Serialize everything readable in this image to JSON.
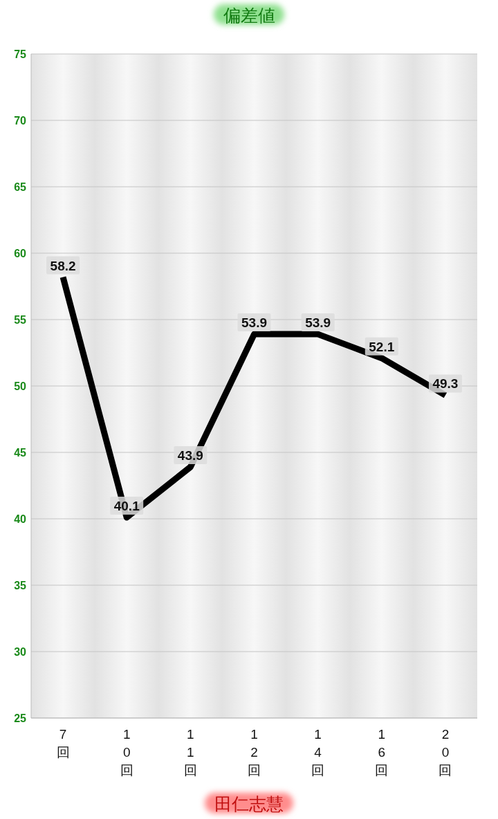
{
  "chart_data": {
    "type": "line",
    "title": "偏差値",
    "xlabel": "田仁志慧",
    "categories": [
      "7回",
      "10回",
      "11回",
      "12回",
      "14回",
      "16回",
      "20回"
    ],
    "series": [
      {
        "color": "#000000",
        "values": [
          58.2,
          40.1,
          43.9,
          53.9,
          53.9,
          52.1,
          49.3
        ]
      }
    ],
    "ylim": [
      25,
      75
    ],
    "yticks": [
      25,
      30,
      35,
      40,
      45,
      50,
      55,
      60,
      65,
      70,
      75
    ],
    "grid": "y",
    "data_labels": true,
    "marker": "none",
    "line_style": "solid"
  }
}
